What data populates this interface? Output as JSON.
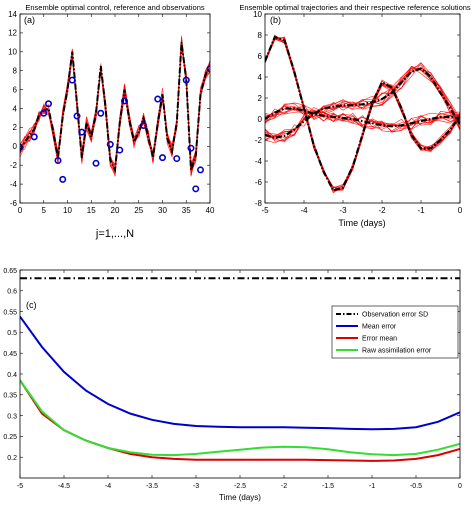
{
  "chart_data": [
    {
      "panel_label": "(a)",
      "type": "line",
      "title": "Ensemble optimal control, reference and observations",
      "xlabel": "j=1,...,N",
      "ylabel": "",
      "xlim": [
        0,
        40
      ],
      "ylim": [
        -6,
        14
      ],
      "xticks": [
        0,
        5,
        10,
        15,
        20,
        25,
        30,
        35,
        40
      ],
      "yticks": [
        -6,
        -4,
        -2,
        0,
        2,
        4,
        6,
        8,
        10,
        12,
        14
      ],
      "grid": false,
      "colors": {
        "reference": "#000000",
        "ensemble": "#ff0000",
        "observations": "#0000cc"
      },
      "series": [
        {
          "style": "dash-dot",
          "color": "#000000",
          "x": [
            0,
            1,
            2,
            3,
            4,
            5,
            6,
            7,
            8,
            9,
            10,
            11,
            12,
            13,
            14,
            15,
            16,
            17,
            18,
            19,
            20,
            21,
            22,
            23,
            24,
            25,
            26,
            27,
            28,
            29,
            30,
            31,
            32,
            33,
            34,
            35,
            36,
            37,
            38,
            39,
            40
          ],
          "y": [
            -0.5,
            0.4,
            1.2,
            1.8,
            3.3,
            3.8,
            4.0,
            1.5,
            -1.2,
            3.2,
            6.0,
            10.0,
            4.5,
            -1.2,
            2.5,
            1.0,
            3.5,
            8.5,
            4.2,
            -1.5,
            -2.5,
            2.5,
            6.0,
            2.8,
            0.5,
            1.5,
            3.0,
            1.0,
            -1.2,
            2.5,
            5.5,
            0.8,
            -0.5,
            2.5,
            11.0,
            7.0,
            -2.5,
            -1.0,
            5.5,
            7.5,
            8.5
          ]
        },
        {
          "style": "circles",
          "color": "#0000cc",
          "x": [
            0,
            3,
            5,
            6,
            8,
            9,
            11,
            12,
            13,
            16,
            17,
            19,
            21,
            22,
            26,
            29,
            30,
            33,
            35,
            36,
            37,
            38,
            40
          ],
          "y": [
            -0.1,
            1.0,
            3.5,
            4.5,
            -1.5,
            -3.5,
            7.0,
            3.2,
            1.5,
            -1.8,
            3.5,
            0.2,
            -0.4,
            4.8,
            2.2,
            5.0,
            -1.2,
            -1.3,
            7.0,
            -0.2,
            -4.5,
            -2.5,
            8.2
          ]
        }
      ]
    },
    {
      "panel_label": "(b)",
      "type": "line",
      "title": "Ensemble optimal trajectories and their respective reference solutions",
      "xlabel": "Time (days)",
      "ylabel": "",
      "xlim": [
        -5,
        0
      ],
      "ylim": [
        -8,
        10
      ],
      "xticks": [
        -5,
        -4,
        -3,
        -2,
        -1,
        0
      ],
      "yticks": [
        -8,
        -6,
        -4,
        -2,
        0,
        2,
        4,
        6,
        8,
        10
      ],
      "grid": false,
      "colors": {
        "reference": "#000000",
        "ensemble": "#ff0000"
      },
      "series": [
        {
          "style": "dash-dot",
          "color": "#000000",
          "x": [
            -5,
            -4.75,
            -4.5,
            -4.25,
            -4,
            -3.75,
            -3.5,
            -3.25,
            -3,
            -2.75,
            -2.5,
            -2.25,
            -2,
            -1.75,
            -1.5,
            -1.25,
            -1,
            -0.75,
            -0.5,
            -0.25,
            0
          ],
          "y": [
            5.5,
            7.8,
            7.5,
            4.5,
            1.0,
            -2.5,
            -5.0,
            -6.8,
            -6.5,
            -4.5,
            -1.5,
            1.5,
            3.5,
            3.0,
            1.0,
            -1.5,
            -2.8,
            -2.8,
            -2.0,
            -1.0,
            0.3
          ]
        },
        {
          "style": "dash-dot",
          "color": "#000000",
          "x": [
            -5,
            -4.75,
            -4.5,
            -4.25,
            -4,
            -3.75,
            -3.5,
            -3.25,
            -3,
            -2.75,
            -2.5,
            -2.25,
            -2,
            -1.75,
            -1.5,
            -1.25,
            -1,
            -0.75,
            -0.5,
            -0.25,
            0
          ],
          "y": [
            -1.5,
            -1.8,
            -1.6,
            -1.0,
            -0.2,
            0.5,
            1.0,
            1.2,
            1.3,
            1.3,
            1.4,
            1.6,
            1.9,
            2.5,
            3.5,
            4.5,
            4.8,
            4.0,
            2.5,
            1.0,
            -0.5
          ]
        },
        {
          "style": "dash-dot",
          "color": "#000000",
          "x": [
            -5,
            -4.75,
            -4.5,
            -4.25,
            -4,
            -3.75,
            -3.5,
            -3.25,
            -3,
            -2.75,
            -2.5,
            -2.25,
            -2,
            -1.75,
            -1.5,
            -1.25,
            -1,
            -0.75,
            -0.5,
            -0.25,
            0
          ],
          "y": [
            0.0,
            0.6,
            1.0,
            1.0,
            0.8,
            0.5,
            0.3,
            0.2,
            0.1,
            0.0,
            -0.2,
            -0.4,
            -0.6,
            -0.7,
            -0.6,
            -0.4,
            -0.2,
            0.0,
            0.2,
            0.2,
            0.1
          ]
        }
      ]
    },
    {
      "panel_label": "(c)",
      "type": "line",
      "title": "",
      "xlabel": "Time (days)",
      "ylabel": "",
      "xlim": [
        -5,
        0
      ],
      "ylim": [
        0.15,
        0.65
      ],
      "xticks": [
        -5,
        -4.5,
        -4,
        -3.5,
        -3,
        -2.5,
        -2,
        -1.5,
        -1,
        -0.5,
        0
      ],
      "xtick_labels": [
        "-5",
        "-4.5",
        "-4",
        "-3.5",
        "-3",
        "-2.5",
        "-2",
        "-1.5",
        "-1",
        "-0.5",
        "0"
      ],
      "yticks": [
        0.2,
        0.25,
        0.3,
        0.35,
        0.4,
        0.45,
        0.5,
        0.55,
        0.6,
        0.65
      ],
      "ytick_labels": [
        "0.2",
        "0.25",
        "0.3",
        "0.35",
        "0.4",
        "0.45",
        "0.5",
        "0.55",
        "0.6",
        "0.65"
      ],
      "grid": false,
      "legend_placement": "top-right",
      "x": [
        -5,
        -4.75,
        -4.5,
        -4.25,
        -4,
        -3.75,
        -3.5,
        -3.25,
        -3,
        -2.75,
        -2.5,
        -2.25,
        -2,
        -1.75,
        -1.5,
        -1.25,
        -1,
        -0.75,
        -0.5,
        -0.25,
        0
      ],
      "series": [
        {
          "name": "Observation error SD",
          "color": "#000000",
          "style": "dash-dot",
          "values": [
            0.63,
            0.63,
            0.63,
            0.63,
            0.63,
            0.63,
            0.63,
            0.63,
            0.63,
            0.63,
            0.63,
            0.63,
            0.63,
            0.63,
            0.63,
            0.63,
            0.63,
            0.63,
            0.63,
            0.63,
            0.63
          ]
        },
        {
          "name": "Mean error",
          "color": "#0000cc",
          "style": "solid",
          "values": [
            0.538,
            0.465,
            0.405,
            0.36,
            0.328,
            0.305,
            0.29,
            0.28,
            0.275,
            0.273,
            0.272,
            0.272,
            0.272,
            0.271,
            0.27,
            0.268,
            0.267,
            0.268,
            0.272,
            0.285,
            0.308
          ]
        },
        {
          "name": "Error mean",
          "color": "#dd0000",
          "style": "solid",
          "values": [
            0.385,
            0.305,
            0.265,
            0.24,
            0.222,
            0.208,
            0.2,
            0.196,
            0.194,
            0.194,
            0.194,
            0.194,
            0.194,
            0.194,
            0.193,
            0.192,
            0.191,
            0.192,
            0.196,
            0.205,
            0.22
          ]
        },
        {
          "name": "Raw assimilation error",
          "color": "#33dd33",
          "style": "solid",
          "values": [
            0.385,
            0.31,
            0.265,
            0.24,
            0.222,
            0.212,
            0.206,
            0.205,
            0.208,
            0.213,
            0.218,
            0.223,
            0.225,
            0.224,
            0.219,
            0.212,
            0.207,
            0.205,
            0.208,
            0.218,
            0.232
          ]
        }
      ]
    }
  ]
}
